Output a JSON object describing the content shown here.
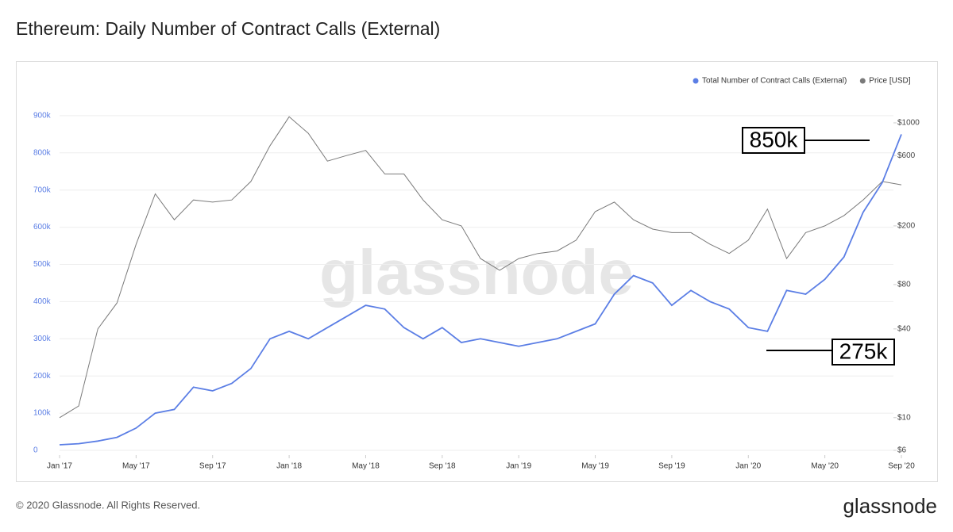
{
  "chart_data": {
    "type": "line",
    "title": "Ethereum: Daily Number of Contract Calls (External)",
    "footer": "© 2020 Glassnode. All Rights Reserved.",
    "logo": "glassnode",
    "watermark": "glassnode",
    "x": [
      "2017-01",
      "2017-02",
      "2017-03",
      "2017-04",
      "2017-05",
      "2017-06",
      "2017-07",
      "2017-08",
      "2017-09",
      "2017-10",
      "2017-11",
      "2017-12",
      "2018-01",
      "2018-02",
      "2018-03",
      "2018-04",
      "2018-05",
      "2018-06",
      "2018-07",
      "2018-08",
      "2018-09",
      "2018-10",
      "2018-11",
      "2018-12",
      "2019-01",
      "2019-02",
      "2019-03",
      "2019-04",
      "2019-05",
      "2019-06",
      "2019-07",
      "2019-08",
      "2019-09",
      "2019-10",
      "2019-11",
      "2019-12",
      "2020-01",
      "2020-02",
      "2020-03",
      "2020-04",
      "2020-05",
      "2020-06",
      "2020-07",
      "2020-08",
      "2020-09"
    ],
    "xticks": [
      {
        "value": "2017-01",
        "label": "Jan '17"
      },
      {
        "value": "2017-05",
        "label": "May '17"
      },
      {
        "value": "2017-09",
        "label": "Sep '17"
      },
      {
        "value": "2018-01",
        "label": "Jan '18"
      },
      {
        "value": "2018-05",
        "label": "May '18"
      },
      {
        "value": "2018-09",
        "label": "Sep '18"
      },
      {
        "value": "2019-01",
        "label": "Jan '19"
      },
      {
        "value": "2019-05",
        "label": "May '19"
      },
      {
        "value": "2019-09",
        "label": "Sep '19"
      },
      {
        "value": "2020-01",
        "label": "Jan '20"
      },
      {
        "value": "2020-05",
        "label": "May '20"
      },
      {
        "value": "2020-09",
        "label": "Sep '20"
      }
    ],
    "series": [
      {
        "name": "Total Number of Contract Calls (External)",
        "color": "#5b7ee5",
        "values": [
          15000,
          18000,
          25000,
          35000,
          60000,
          100000,
          110000,
          170000,
          160000,
          180000,
          220000,
          300000,
          320000,
          300000,
          330000,
          360000,
          390000,
          380000,
          330000,
          300000,
          330000,
          290000,
          300000,
          290000,
          280000,
          290000,
          300000,
          320000,
          340000,
          420000,
          470000,
          450000,
          390000,
          430000,
          400000,
          380000,
          330000,
          320000,
          430000,
          420000,
          460000,
          520000,
          640000,
          720000,
          850000
        ]
      },
      {
        "name": "Price [USD]",
        "color": "#7a7a7a",
        "axis": "y2",
        "values": [
          10,
          12,
          40,
          60,
          150,
          330,
          220,
          300,
          290,
          300,
          400,
          700,
          1100,
          850,
          550,
          600,
          650,
          450,
          450,
          300,
          220,
          200,
          120,
          100,
          120,
          130,
          135,
          160,
          250,
          290,
          220,
          190,
          180,
          180,
          150,
          130,
          160,
          260,
          120,
          180,
          200,
          235,
          300,
          400,
          380
        ]
      }
    ],
    "ylim": [
      0,
      1000000
    ],
    "yticks": [
      0,
      {
        "value": 100000,
        "label": "100k"
      },
      {
        "value": 200000,
        "label": "200k"
      },
      {
        "value": 300000,
        "label": "300k"
      },
      {
        "value": 400000,
        "label": "400k"
      },
      {
        "value": 500000,
        "label": "500k"
      },
      {
        "value": 600000,
        "label": "600k"
      },
      {
        "value": 700000,
        "label": "700k"
      },
      {
        "value": 800000,
        "label": "800k"
      },
      {
        "value": 900000,
        "label": "900k"
      }
    ],
    "y2lim": [
      6,
      2000
    ],
    "y2scale": "log",
    "y2ticks": [
      {
        "value": 6,
        "label": "$6"
      },
      {
        "value": 10,
        "label": "$10"
      },
      {
        "value": 40,
        "label": "$40"
      },
      {
        "value": 80,
        "label": "$80"
      },
      {
        "value": 200,
        "label": "$200"
      },
      {
        "value": 600,
        "label": "$600"
      },
      {
        "value": 1000,
        "label": "$1000"
      }
    ],
    "grid": true,
    "legend": "top-right",
    "annotations": [
      {
        "text": "850k"
      },
      {
        "text": "275k"
      }
    ]
  }
}
